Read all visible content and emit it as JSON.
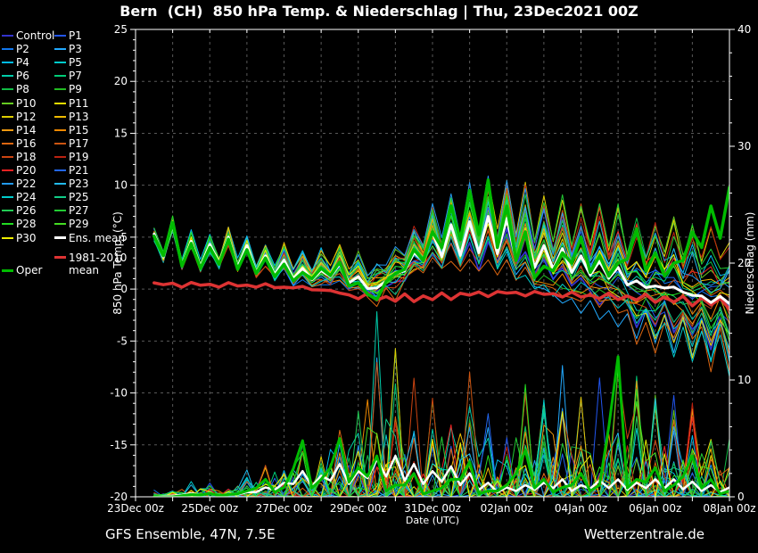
{
  "title": "Bern  (CH)  850 hPa Temp. & Niederschlag | Thu, 23Dec2021 00Z",
  "footer": {
    "left": "GFS Ensemble, 47N, 7.5E",
    "right": "Wetterzentrale.de"
  },
  "colors": {
    "background": "#000000",
    "axis": "#ffffff",
    "grid": "#585858",
    "ens_mean": "#ffffff",
    "climate_mean": "#dd3333",
    "oper": "#00bb00"
  },
  "legend": {
    "members": [
      {
        "label": "Control",
        "color": "#3333cc"
      },
      {
        "label": "P1",
        "color": "#2255ee"
      },
      {
        "label": "P2",
        "color": "#1177ee"
      },
      {
        "label": "P3",
        "color": "#22aaff"
      },
      {
        "label": "P4",
        "color": "#00bbee"
      },
      {
        "label": "P5",
        "color": "#00cccc"
      },
      {
        "label": "P6",
        "color": "#00ccaa"
      },
      {
        "label": "P7",
        "color": "#00cc77"
      },
      {
        "label": "P8",
        "color": "#11bb44"
      },
      {
        "label": "P9",
        "color": "#22bb22"
      },
      {
        "label": "P10",
        "color": "#66cc22"
      },
      {
        "label": "P11",
        "color": "#eedd00"
      },
      {
        "label": "P12",
        "color": "#ddcc00"
      },
      {
        "label": "P13",
        "color": "#eebb00"
      },
      {
        "label": "P14",
        "color": "#ee9911"
      },
      {
        "label": "P15",
        "color": "#ee8800"
      },
      {
        "label": "P16",
        "color": "#dd6611"
      },
      {
        "label": "P17",
        "color": "#cc5511"
      },
      {
        "label": "P18",
        "color": "#cc4411"
      },
      {
        "label": "P19",
        "color": "#bb2211"
      },
      {
        "label": "P20",
        "color": "#ee2222"
      },
      {
        "label": "P21",
        "color": "#2266ee"
      },
      {
        "label": "P22",
        "color": "#2299ee"
      },
      {
        "label": "P23",
        "color": "#22bbee"
      },
      {
        "label": "P24",
        "color": "#00cccc"
      },
      {
        "label": "P25",
        "color": "#11cc88"
      },
      {
        "label": "P26",
        "color": "#22cc55"
      },
      {
        "label": "P27",
        "color": "#22cc33"
      },
      {
        "label": "P28",
        "color": "#22dd22"
      },
      {
        "label": "P29",
        "color": "#44dd22"
      },
      {
        "label": "P30",
        "color": "#eeee00"
      }
    ],
    "ens_mean": {
      "label": "Ens. mean",
      "color": "#ffffff"
    },
    "climate": {
      "label": "1981-2010\nmean",
      "color": "#dd3333"
    },
    "oper": {
      "label": "Oper",
      "color": "#00bb00"
    }
  },
  "chart_data": {
    "type": "line",
    "title": "Bern  (CH)  850 hPa Temp. & Niederschlag | Thu, 23Dec2021 00Z",
    "x_axis": {
      "label": "Date (UTC)",
      "range_hours": [
        0,
        384
      ],
      "days": 16,
      "tick_labels": [
        "23Dec 00z",
        "25Dec 00z",
        "27Dec 00z",
        "29Dec 00z",
        "31Dec 00z",
        "02Jan 00z",
        "04Jan 00z",
        "06Jan 00z",
        "08Jan 00z"
      ]
    },
    "y_left": {
      "label": "850 hPa Temp. (°C)",
      "range": [
        -20,
        25
      ],
      "major_tick_step": 5,
      "minor_tick_step": 1,
      "ticks": [
        25,
        20,
        15,
        10,
        5,
        0,
        -5,
        -10,
        -15,
        -20
      ]
    },
    "y_right": {
      "label": "Niederschlag (mm)",
      "range": [
        0,
        40
      ],
      "major_tick_step": 10,
      "minor_tick_step": 2,
      "ticks": [
        40,
        30,
        20,
        10,
        0
      ]
    },
    "grid": {
      "horizontal_at": [
        20,
        15,
        10,
        5,
        0,
        -5,
        -10,
        -15
      ],
      "vertical_every_hours": 24,
      "dashed": true
    },
    "time_step_hours": 12,
    "series_start_hour": 12,
    "ens_mean_temp": [
      5.4,
      5.3,
      6.2,
      4.6,
      4.3,
      5.0,
      4.2,
      3.2,
      2.8,
      2.0,
      1.8,
      2.4,
      1.2,
      0.1,
      1.5,
      3.5,
      5.5,
      6.2,
      6.5,
      7.0,
      6.8,
      5.5,
      4.2,
      3.9,
      3.2,
      2.7,
      2.1,
      0.8,
      0.3,
      0.2,
      -0.6,
      -1.3,
      -1.4
    ],
    "oper_temp": [
      5.2,
      5.1,
      6.4,
      4.4,
      4.0,
      4.8,
      3.8,
      3.0,
      2.4,
      1.6,
      2.0,
      2.6,
      0.6,
      -1.0,
      1.5,
      3.8,
      5.5,
      8.0,
      9.5,
      10.5,
      8.0,
      5.5,
      2.2,
      3.5,
      5.0,
      3.2,
      2.5,
      5.8,
      3.5,
      2.5,
      5.5,
      8.0,
      9.8
    ],
    "climate_mean_temp": [
      0.6,
      0.6,
      0.6,
      0.58,
      0.55,
      0.52,
      0.5,
      0.4,
      0.3,
      0.15,
      0.0,
      -0.45,
      -0.9,
      -1.05,
      -1.2,
      -1.15,
      -1.1,
      -0.9,
      -0.7,
      -0.6,
      -0.5,
      -0.55,
      -0.6,
      -0.7,
      -0.8,
      -0.9,
      -1.0,
      -1.1,
      -1.2,
      -1.35,
      -1.5,
      -1.65,
      -1.8
    ],
    "ens_mean_precip": [
      0,
      0,
      0.1,
      0.3,
      0.3,
      0.2,
      0.4,
      0.8,
      1.2,
      2.2,
      1.8,
      2.8,
      2.2,
      3.2,
      3.5,
      2.8,
      2.2,
      2.6,
      2.0,
      1.2,
      0.8,
      1.0,
      1.2,
      1.5,
      1.0,
      1.4,
      1.5,
      1.2,
      1.5,
      1.5,
      1.3,
      1.0,
      0.8
    ],
    "oper_precip": [
      0,
      0,
      0,
      0.2,
      0.3,
      0.2,
      0.5,
      1.5,
      0.8,
      4.8,
      1.5,
      5.0,
      2.5,
      3.5,
      1.0,
      2.0,
      0.5,
      1.5,
      3.0,
      0.5,
      1.0,
      4.0,
      1.5,
      0.8,
      2.0,
      1.0,
      12.0,
      1.5,
      2.5,
      1.0,
      3.5,
      1.5,
      0.5
    ],
    "member_spread_sd": [
      0.7,
      0.7,
      0.8,
      0.8,
      0.9,
      1.0,
      1.0,
      1.1,
      1.2,
      1.3,
      1.4,
      1.5,
      1.8,
      2.0,
      2.2,
      2.4,
      2.5,
      2.6,
      2.8,
      3.0,
      3.2,
      3.4,
      3.6,
      3.8,
      4.0,
      4.2,
      4.4,
      4.6,
      4.8,
      5.0,
      5.2,
      5.4,
      5.5
    ],
    "precip_envelope": [
      0.3,
      0.5,
      1,
      1.5,
      1.5,
      1,
      2,
      3,
      4,
      6,
      5,
      8,
      7,
      15,
      12,
      10,
      8,
      10,
      12,
      8,
      6,
      10,
      8,
      12,
      9,
      10,
      14,
      12,
      10,
      12,
      10,
      8,
      5
    ]
  }
}
